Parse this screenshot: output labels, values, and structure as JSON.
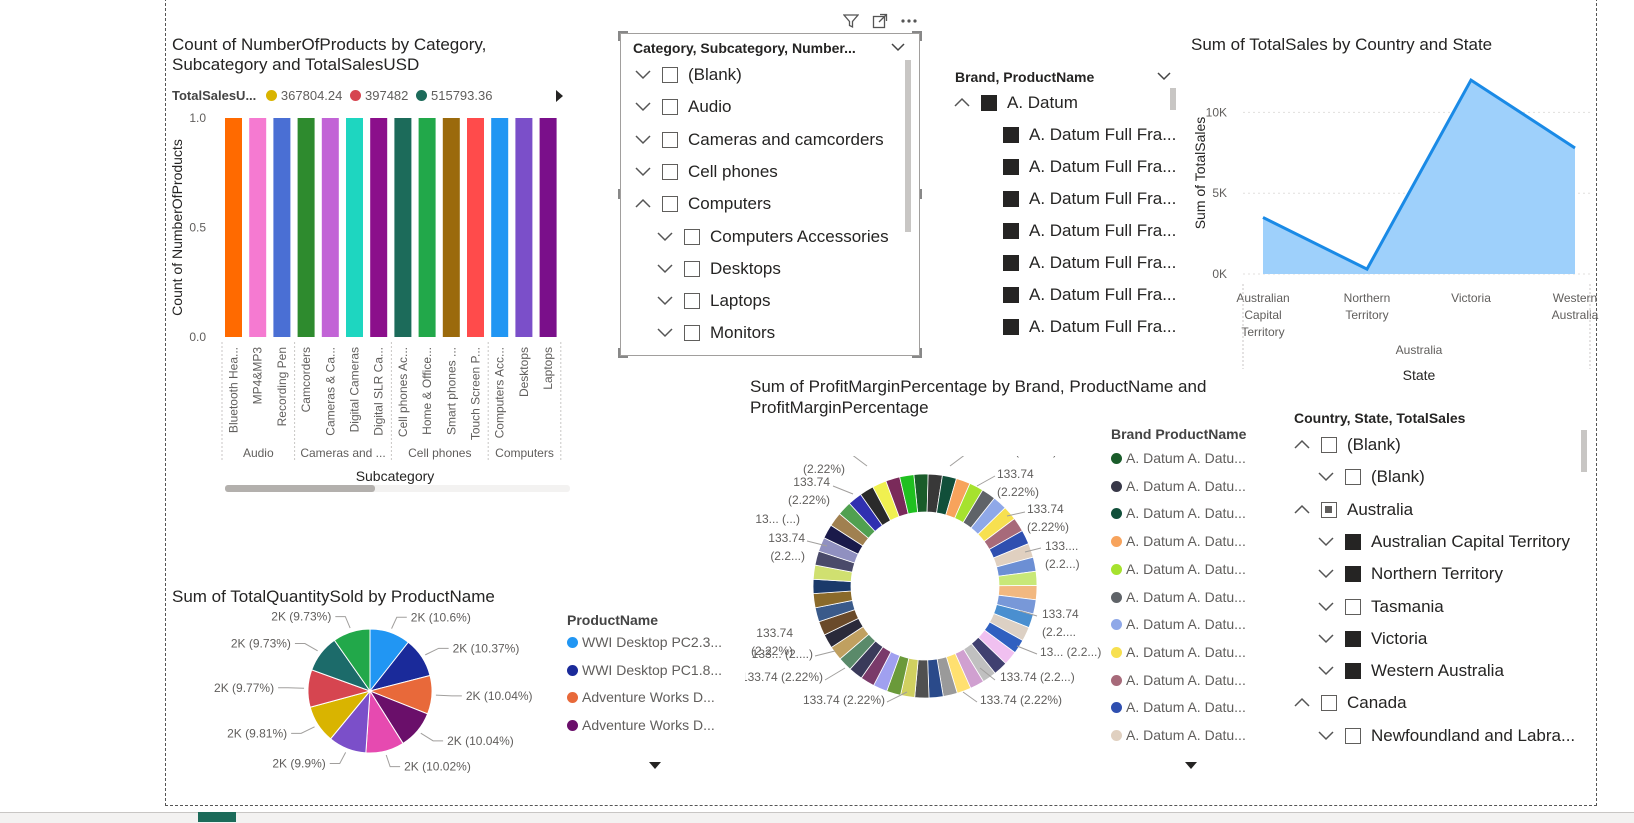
{
  "bar_chart": {
    "title_line1": "Count of NumberOfProducts by Category,",
    "title_line2": "Subcategory and TotalSalesUSD",
    "legend_title": "TotalSalesU...",
    "legend_items": [
      {
        "label": "367804.24",
        "color": "#d9b400"
      },
      {
        "label": "397482",
        "color": "#d64550"
      },
      {
        "label": "515793.36",
        "color": "#1c6b5a"
      }
    ],
    "y_axis_label": "Count of NumberOfProducts",
    "y_ticks": [
      "1.0",
      "0.5",
      "0.0"
    ],
    "x_axis_label": "Subcategory"
  },
  "chart_data": [
    {
      "type": "bar",
      "title": "Count of NumberOfProducts by Category, Subcategory and TotalSalesUSD",
      "xlabel": "Subcategory",
      "ylabel": "Count of NumberOfProducts",
      "ylim": [
        0,
        1
      ],
      "categories": [
        "Bluetooth Hea...",
        "MP4&MP3",
        "Recording Pen",
        "Camcorders",
        "Cameras & Ca...",
        "Digital Cameras",
        "Digital SLR Ca...",
        "Cell phones Ac...",
        "Home & Office...",
        "Smart phones ...",
        "Touch Screen P...",
        "Computers Acc...",
        "Desktops",
        "Laptops"
      ],
      "values": [
        1,
        1,
        1,
        1,
        1,
        1,
        1,
        1,
        1,
        1,
        1,
        1,
        1,
        1
      ],
      "colors": [
        "#ff6a00",
        "#f57ad1",
        "#4a6fd4",
        "#2e8b2e",
        "#c264d6",
        "#1ed6c0",
        "#8b0f8b",
        "#1c6b5a",
        "#22a84a",
        "#9b6a0c",
        "#ff4b4b",
        "#2196f3",
        "#7b4fc9",
        "#7a0f8a"
      ],
      "groups": [
        {
          "label": "Audio",
          "span": 3
        },
        {
          "label": "Cameras and ...",
          "span": 4
        },
        {
          "label": "Cell phones",
          "span": 4
        },
        {
          "label": "Computers",
          "span": 3
        }
      ]
    },
    {
      "type": "area",
      "title": "Sum of TotalSales by Country and State",
      "xlabel": "State",
      "ylabel": "Sum of TotalSales",
      "x_group_label": "Australia",
      "categories": [
        "Australian Capital Territory",
        "Northern Territory",
        "Victoria",
        "Western Australia"
      ],
      "category_lines": [
        [
          "Australian",
          "Capital",
          "Territory"
        ],
        [
          "Northern",
          "Territory"
        ],
        [
          "Victoria"
        ],
        [
          "Western",
          "Australia"
        ]
      ],
      "values": [
        3500,
        300,
        12000,
        7800
      ],
      "ylim": [
        0,
        12500
      ],
      "y_ticks": [
        {
          "value": 10000,
          "label": "10K"
        },
        {
          "value": 5000,
          "label": "5K"
        },
        {
          "value": 0,
          "label": "0K"
        }
      ]
    },
    {
      "type": "pie",
      "title": "Sum of TotalQuantitySold by ProductName",
      "slices": [
        {
          "label": "2K (10.6%)",
          "value": 10.6,
          "color": "#2196f3"
        },
        {
          "label": "2K (10.37%)",
          "value": 10.37,
          "color": "#1a2a9a"
        },
        {
          "label": "2K (10.04%)",
          "value": 10.04,
          "color": "#e8693a"
        },
        {
          "label": "2K (10.04%)",
          "value": 10.04,
          "color": "#6a0f6a"
        },
        {
          "label": "2K (10.02%)",
          "value": 10.02,
          "color": "#e64ab0"
        },
        {
          "label": "2K (9.9%)",
          "value": 9.9,
          "color": "#7b4fc9"
        },
        {
          "label": "2K (9.81%)",
          "value": 9.81,
          "color": "#d9b400"
        },
        {
          "label": "2K (9.77%)",
          "value": 9.77,
          "color": "#d64550"
        },
        {
          "label": "2K (9.73%)",
          "value": 9.73,
          "color": "#1c6b6a"
        },
        {
          "label": "2K (9.73%)",
          "value": 9.73,
          "color": "#22a84a"
        }
      ]
    },
    {
      "type": "pie",
      "title": "Sum of ProfitMarginPercentage by Brand, ProductName and ProfitMarginPercentage",
      "donut": true,
      "slice_value": 133.74,
      "slice_percent": 2.22,
      "colors": [
        "#1a5c2a",
        "#383838",
        "#114f3a",
        "#f7a35c",
        "#a6e22e",
        "#5f6368",
        "#8fa8e8",
        "#f7e050",
        "#a76a7a",
        "#2f4fb0",
        "#e0d0c0",
        "#6c8fd4",
        "#c8e878",
        "#f2b880",
        "#7898d8",
        "#4a8fd0",
        "#dcd0c4",
        "#3060c0",
        "#f0c0f0",
        "#404070",
        "#c0c0c0",
        "#d0a0d0",
        "#ffe070",
        "#9a9a9a",
        "#2a4a8a",
        "#505050",
        "#d0d060",
        "#6a9a3a",
        "#a0a0f0",
        "#7a3a6a",
        "#3a3a5a",
        "#5a8a6a",
        "#c0a060",
        "#2a2a3a",
        "#6a4a2a",
        "#3a5a8a",
        "#8a6a2a",
        "#1a3a6a",
        "#d0e070",
        "#4a4a6a",
        "#9090c0",
        "#1a1a4a",
        "#a08050",
        "#50a050",
        "#3030b0",
        "#2a2a2a",
        "#f0f050",
        "#7a2a5a",
        "#20c020"
      ]
    }
  ],
  "slicer_category": {
    "header": "Category, Subcategory, Number...",
    "items": [
      {
        "label": "(Blank)",
        "level": 0,
        "expanded": false
      },
      {
        "label": "Audio",
        "level": 0,
        "expanded": false
      },
      {
        "label": "Cameras and camcorders",
        "level": 0,
        "expanded": false
      },
      {
        "label": "Cell phones",
        "level": 0,
        "expanded": false
      },
      {
        "label": "Computers",
        "level": 0,
        "expanded": true
      },
      {
        "label": "Computers Accessories",
        "level": 1,
        "expanded": false
      },
      {
        "label": "Desktops",
        "level": 1,
        "expanded": false
      },
      {
        "label": "Laptops",
        "level": 1,
        "expanded": false
      },
      {
        "label": "Monitors",
        "level": 1,
        "expanded": false
      }
    ]
  },
  "slicer_brand": {
    "header": "Brand, ProductName",
    "items": [
      {
        "label": "A. Datum",
        "level": 0
      },
      {
        "label": "A. Datum Full Fra...",
        "level": 1
      },
      {
        "label": "A. Datum Full Fra...",
        "level": 1
      },
      {
        "label": "A. Datum Full Fra...",
        "level": 1
      },
      {
        "label": "A. Datum Full Fra...",
        "level": 1
      },
      {
        "label": "A. Datum Full Fra...",
        "level": 1
      },
      {
        "label": "A. Datum Full Fra...",
        "level": 1
      },
      {
        "label": "A. Datum Full Fra...",
        "level": 1
      }
    ]
  },
  "slicer_country": {
    "header": "Country, State, TotalSales",
    "items": [
      {
        "label": "(Blank)",
        "level": 0,
        "state": "empty",
        "expanded": true
      },
      {
        "label": "(Blank)",
        "level": 1,
        "state": "empty",
        "expanded": false
      },
      {
        "label": "Australia",
        "level": 0,
        "state": "partial",
        "expanded": true
      },
      {
        "label": "Australian Capital Territory",
        "level": 1,
        "state": "filled",
        "expanded": false
      },
      {
        "label": "Northern Territory",
        "level": 1,
        "state": "filled",
        "expanded": false
      },
      {
        "label": "Tasmania",
        "level": 1,
        "state": "empty",
        "expanded": false
      },
      {
        "label": "Victoria",
        "level": 1,
        "state": "filled",
        "expanded": false
      },
      {
        "label": "Western Australia",
        "level": 1,
        "state": "filled",
        "expanded": false
      },
      {
        "label": "Canada",
        "level": 0,
        "state": "empty",
        "expanded": true
      },
      {
        "label": "Newfoundland and Labra...",
        "level": 1,
        "state": "empty",
        "expanded": false
      }
    ]
  },
  "area_chart": {
    "title": "Sum of TotalSales by Country and State"
  },
  "pie_chart": {
    "title": "Sum of TotalQuantitySold by ProductName",
    "legend_title": "ProductName",
    "legend_items": [
      {
        "label": "WWI Desktop PC2.3...",
        "color": "#2196f3"
      },
      {
        "label": "WWI Desktop PC1.8...",
        "color": "#1a2a9a"
      },
      {
        "label": "Adventure Works D...",
        "color": "#e8693a"
      },
      {
        "label": "Adventure Works D...",
        "color": "#6a0f6a"
      }
    ]
  },
  "donut_chart": {
    "title_line1": "Sum of ProfitMarginPercentage by Brand, ProductName and",
    "title_line2": "ProfitMarginPercentage",
    "legend_title": "Brand ProductName",
    "legend_items": [
      {
        "label": "A. Datum A. Datu...",
        "color": "#1a5c2a"
      },
      {
        "label": "A. Datum A. Datu...",
        "color": "#383848"
      },
      {
        "label": "A. Datum A. Datu...",
        "color": "#114f3a"
      },
      {
        "label": "A. Datum A. Datu...",
        "color": "#f7a35c"
      },
      {
        "label": "A. Datum A. Datu...",
        "color": "#a6e22e"
      },
      {
        "label": "A. Datum A. Datu...",
        "color": "#5f6368"
      },
      {
        "label": "A. Datum A. Datu...",
        "color": "#8fa8e8"
      },
      {
        "label": "A. Datum A. Datu...",
        "color": "#f7e050"
      },
      {
        "label": "A. Datum A. Datu...",
        "color": "#a76a7a"
      },
      {
        "label": "A. Datum A. Datu...",
        "color": "#2f4fb0"
      },
      {
        "label": "A. Datum A. Datu...",
        "color": "#e0d0c0"
      }
    ],
    "labels": [
      {
        "text": "133.74 (2.22%)"
      },
      {
        "text": "133.74"
      },
      {
        "text": "(2.22%)"
      },
      {
        "text": "133.74"
      },
      {
        "text": "(2.22%)"
      },
      {
        "text": "133...."
      },
      {
        "text": "(2.2...)"
      },
      {
        "text": "133.74"
      },
      {
        "text": "(2.2...."
      },
      {
        "text": "13... (2.2...)"
      },
      {
        "text": "133.74 (2.2...)"
      },
      {
        "text": "133.74 (2.22%)"
      },
      {
        "text": "133.74 (2.22%)"
      },
      {
        "text": "133.74 (2.22%)"
      },
      {
        "text": "133... (2....)"
      },
      {
        "text": "133.74"
      },
      {
        "text": "(2.22%)"
      },
      {
        "text": "133.74"
      },
      {
        "text": "(2.2...)"
      },
      {
        "text": "13... (...)"
      },
      {
        "text": "133.74"
      },
      {
        "text": "(2.22%)"
      },
      {
        "text": "133.74"
      },
      {
        "text": "(2.22%)"
      }
    ]
  },
  "icons": {
    "filter": "filter-icon",
    "focus": "focus-mode-icon",
    "more": "more-options-icon"
  }
}
